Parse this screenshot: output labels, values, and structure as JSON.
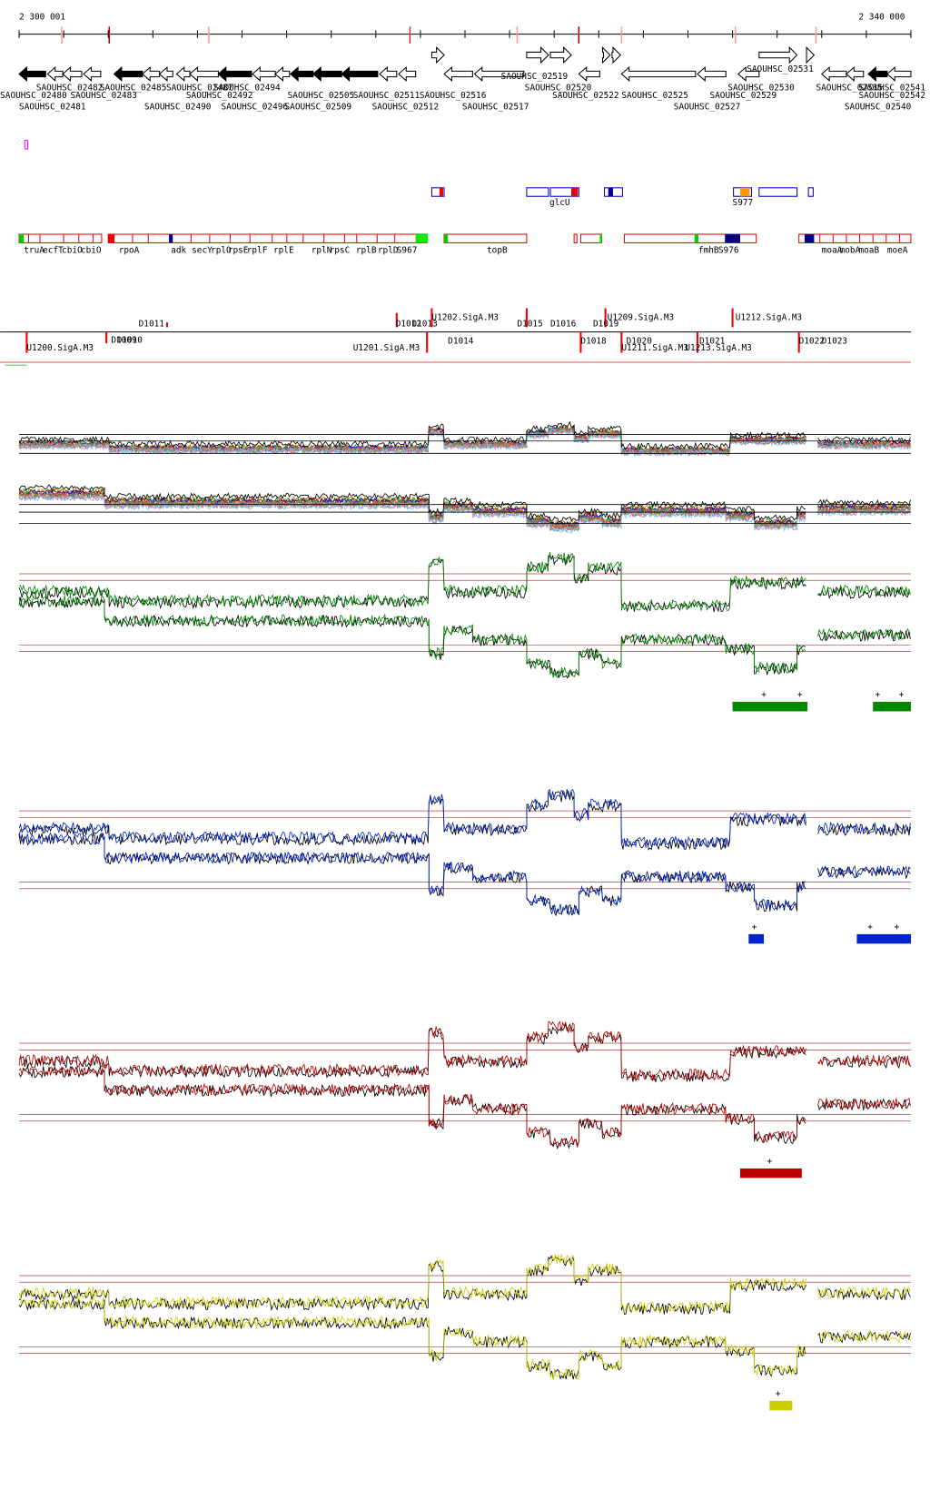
{
  "ruler": {
    "start": "2 300 001",
    "end": "2 340 000"
  },
  "genes": [
    "SAOUHSC_02480",
    "SAOUHSC_02482",
    "SAOUHSC_02483",
    "SAOUHSC_02481",
    "SAOUHSC_02485",
    "SAOUHSC_02487",
    "SAOUHSC_02490",
    "SAOUHSC_02492",
    "SAOUHSC_02494",
    "SAOUHSC_02496",
    "SAOUHSC_02505",
    "SAOUHSC_02509",
    "SAOUHSC_02511",
    "SAOUHSC_02512",
    "SAOUHSC_02516",
    "SAOUHSC_02517",
    "SAOUHSC_02519",
    "SAOUHSC_02520",
    "SAOUHSC_02522",
    "SAOUHSC_02525",
    "SAOUHSC_02527",
    "SAOUHSC_02529",
    "SAOUHSC_02530",
    "SAOUHSC_02531",
    "SAOUHSC_02535",
    "SAOUHSC_02540",
    "SAOUHSC_02541",
    "SAOUHSC_02542"
  ],
  "features_top": [
    "glcU",
    "S977"
  ],
  "features": [
    "truA",
    "ecfT",
    "cbiO",
    "cbiO",
    "rpoA",
    "adk",
    "secY",
    "rplO",
    "rpsE",
    "rplF",
    "rplE",
    "rplN",
    "rpsC",
    "rplB",
    "rplD",
    "S967",
    "topB",
    "fmhB",
    "S976",
    "moaA",
    "mobA",
    "moaB",
    "moeA"
  ],
  "units": [
    "D1011",
    "D1012",
    "D1013",
    "U1202.SigA.M3",
    "D1014",
    "D1015",
    "D1016",
    "D1018",
    "D1019",
    "U1209.SigA.M3",
    "U1212.SigA.M3",
    "D1020",
    "D1021",
    "D1022",
    "D1023",
    "U1200.SigA.M3",
    "U1201.SigA.M3",
    "U1211.SigA.M3",
    "U1213.SigA.M3",
    "D1009",
    "D1010"
  ],
  "panels": [
    {
      "markers": [
        "+",
        "+",
        "+",
        "+"
      ]
    },
    {
      "markers": [
        "+",
        "+",
        "+"
      ]
    },
    {
      "markers": [
        "+"
      ]
    },
    {
      "markers": [
        "+"
      ]
    }
  ]
}
